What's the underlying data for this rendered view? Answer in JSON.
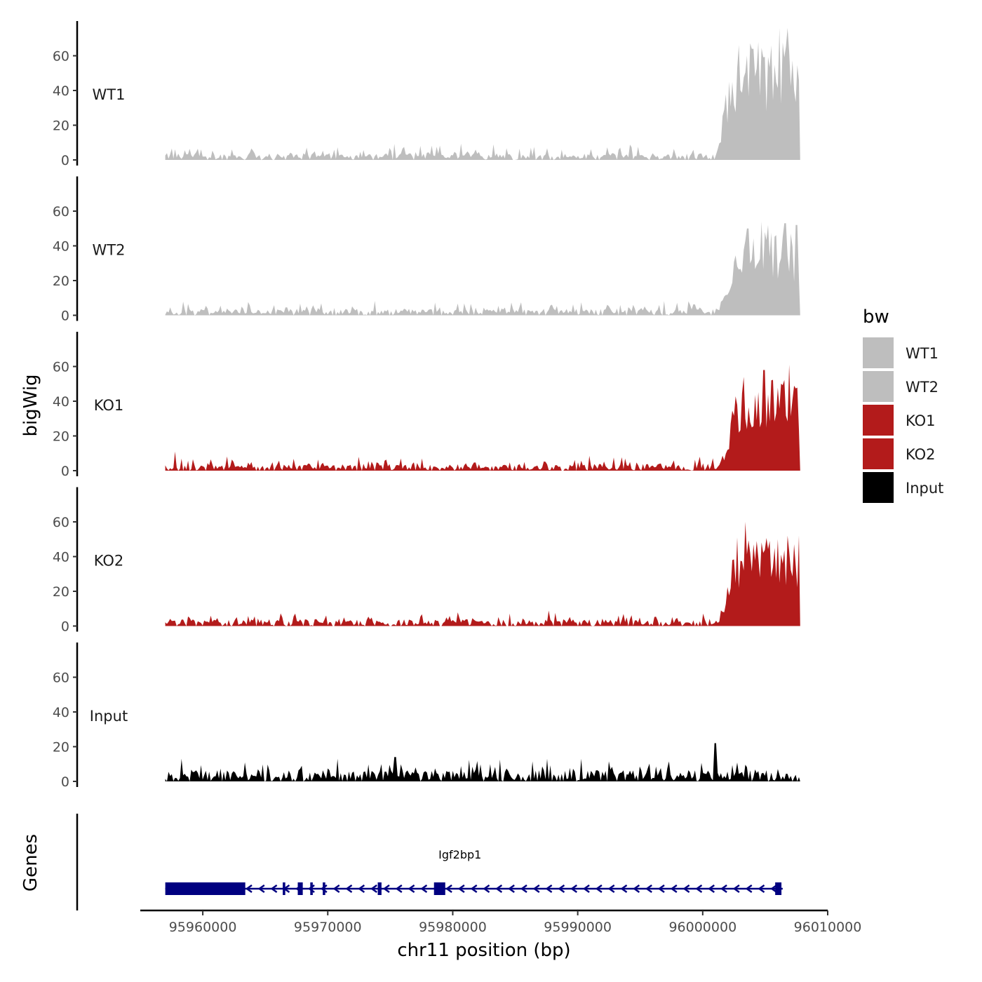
{
  "chart_data": {
    "type": "area",
    "chromosome": "chr11",
    "xlabel": "chr11 position (bp)",
    "ylabel": "bigWig",
    "genes_label": "Genes",
    "xlim": [
      95955000,
      96010000
    ],
    "data_range": [
      95957000,
      96007800
    ],
    "x_ticks": [
      95960000,
      95970000,
      95980000,
      95990000,
      96000000,
      96010000
    ],
    "x_tick_labels": [
      "95960000",
      "95970000",
      "95980000",
      "95990000",
      "96000000",
      "96010000"
    ],
    "ylim": [
      0,
      80
    ],
    "y_ticks": [
      0,
      20,
      40,
      60
    ],
    "y_tick_labels": [
      "0",
      "20",
      "40",
      "60"
    ],
    "legend": {
      "title": "bw",
      "position": "right",
      "entries": [
        {
          "label": "WT1",
          "color": "#bebebe"
        },
        {
          "label": "WT2",
          "color": "#bebebe"
        },
        {
          "label": "KO1",
          "color": "#b31b1b"
        },
        {
          "label": "KO2",
          "color": "#b31b1b"
        },
        {
          "label": "Input",
          "color": "#000000"
        }
      ]
    },
    "series": [
      {
        "name": "WT1",
        "color": "#bebebe",
        "baseline": 3,
        "noise": 6,
        "peak": {
          "start": 96001000,
          "end": 96007800,
          "max": 76
        },
        "spikes": [
          {
            "x": 96006800,
            "value": 76
          },
          {
            "x": 96006100,
            "value": 76
          },
          {
            "x": 96005500,
            "value": 66
          },
          {
            "x": 96004000,
            "value": 64
          },
          {
            "x": 96004500,
            "value": 68
          },
          {
            "x": 96007700,
            "value": 46
          }
        ]
      },
      {
        "name": "WT2",
        "color": "#bebebe",
        "baseline": 3,
        "noise": 5,
        "peak": {
          "start": 96001200,
          "end": 96007800,
          "max": 54
        },
        "spikes": [
          {
            "x": 96004700,
            "value": 54
          },
          {
            "x": 96005200,
            "value": 52
          },
          {
            "x": 96006600,
            "value": 53
          },
          {
            "x": 96007500,
            "value": 52
          },
          {
            "x": 96003600,
            "value": 50
          }
        ]
      },
      {
        "name": "KO1",
        "color": "#b31b1b",
        "baseline": 3,
        "noise": 5,
        "peak": {
          "start": 96001300,
          "end": 96007800,
          "max": 61
        },
        "spikes": [
          {
            "x": 96006900,
            "value": 61
          },
          {
            "x": 96003300,
            "value": 54
          },
          {
            "x": 96004900,
            "value": 58
          },
          {
            "x": 95957800,
            "value": 11
          }
        ]
      },
      {
        "name": "KO2",
        "color": "#b31b1b",
        "baseline": 3,
        "noise": 5,
        "peak": {
          "start": 96001200,
          "end": 96007800,
          "max": 60
        },
        "spikes": [
          {
            "x": 96003400,
            "value": 60
          },
          {
            "x": 96004300,
            "value": 49
          },
          {
            "x": 96005700,
            "value": 45
          },
          {
            "x": 96007400,
            "value": 35
          }
        ]
      },
      {
        "name": "Input",
        "color": "#000000",
        "baseline": 5,
        "noise": 7,
        "peak": null,
        "spikes": [
          {
            "x": 96001000,
            "value": 22
          },
          {
            "x": 95970800,
            "value": 13
          },
          {
            "x": 95975400,
            "value": 14
          },
          {
            "x": 95987600,
            "value": 13
          },
          {
            "x": 95990300,
            "value": 13
          }
        ]
      }
    ],
    "gene": {
      "name": "Igf2bp1",
      "strand": "-",
      "color": "#000080",
      "start": 95957000,
      "end": 96006400,
      "exons": [
        {
          "start": 95957000,
          "end": 95963400
        },
        {
          "start": 95966400,
          "end": 95966600
        },
        {
          "start": 95967600,
          "end": 95968000
        },
        {
          "start": 95968600,
          "end": 95968800
        },
        {
          "start": 95969600,
          "end": 95969800
        },
        {
          "start": 95974000,
          "end": 95974300
        },
        {
          "start": 95978500,
          "end": 95979400
        },
        {
          "start": 96005800,
          "end": 96006300
        }
      ]
    }
  }
}
